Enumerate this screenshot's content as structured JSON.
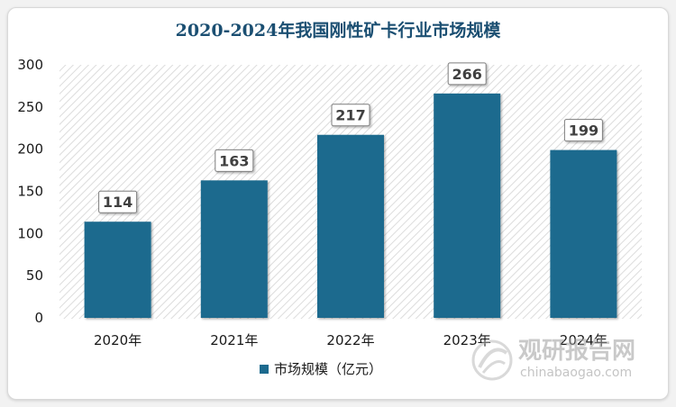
{
  "chart_data": {
    "type": "bar",
    "title": "2020-2024年我国刚性矿卡行业市场规模",
    "categories": [
      "2020年",
      "2021年",
      "2022年",
      "2023年",
      "2024年"
    ],
    "series": [
      {
        "name": "市场规模（亿元）",
        "values": [
          114,
          163,
          217,
          266,
          199
        ]
      }
    ],
    "yticks": [
      "0",
      "50",
      "100",
      "150",
      "200",
      "250",
      "300"
    ],
    "ylim": [
      0,
      300
    ],
    "xlabel": "",
    "ylabel": "",
    "legend_position": "bottom",
    "grid": false,
    "bar_color": "#1c6a8e"
  },
  "watermark": {
    "cn": "观研报告网",
    "en": "chinabaogao.com"
  }
}
